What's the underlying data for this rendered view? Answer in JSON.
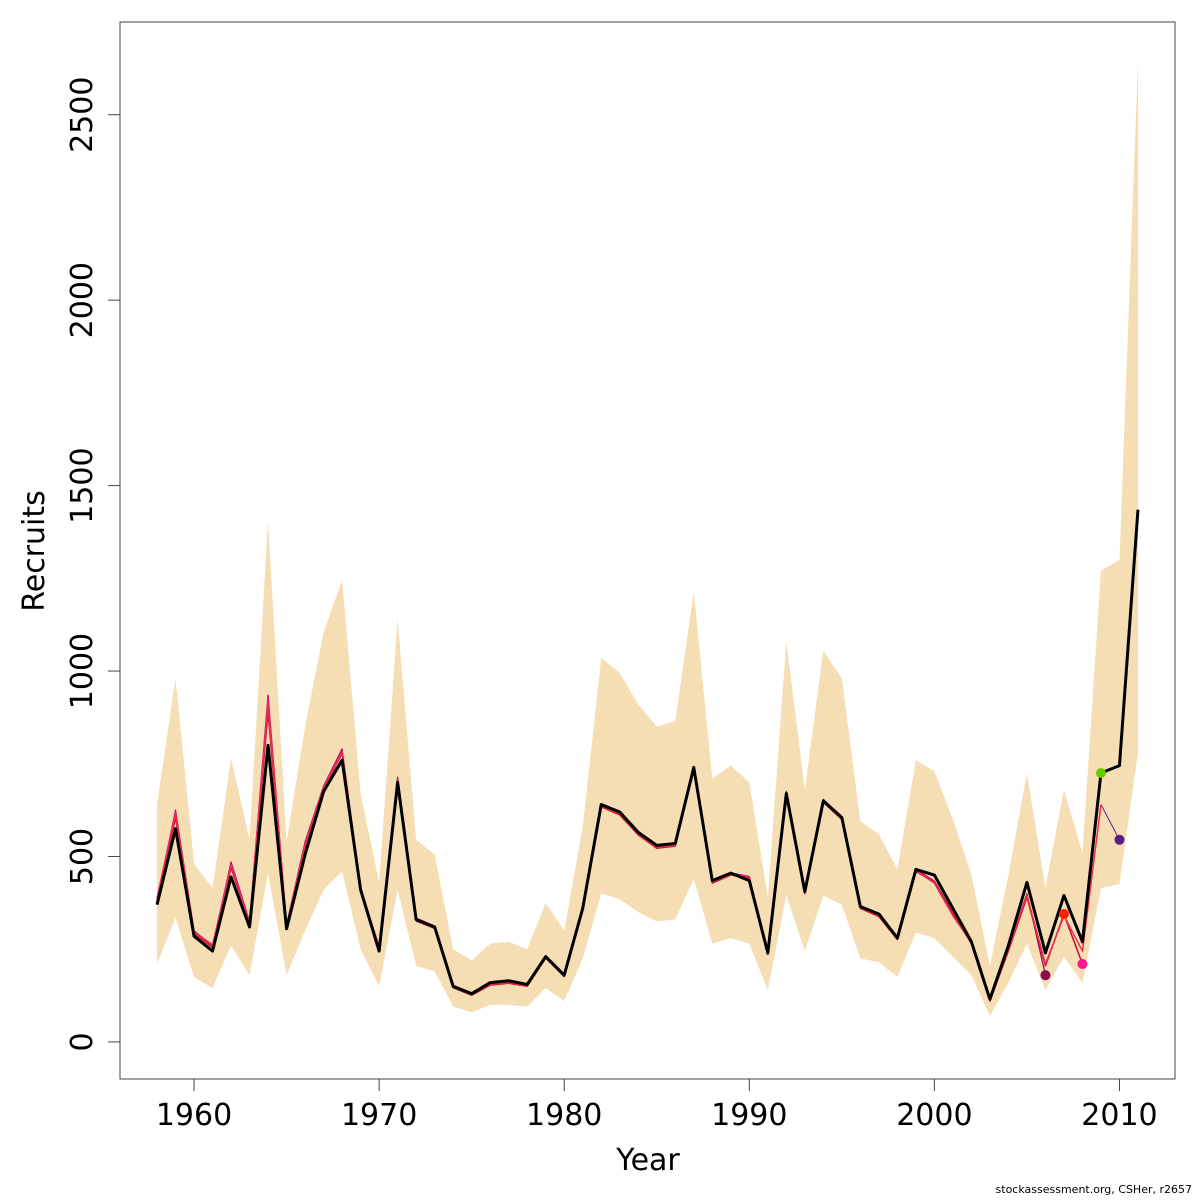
{
  "chart_data": {
    "type": "line",
    "xlabel": "Year",
    "ylabel": "Recruits",
    "xlim": [
      1956,
      2013
    ],
    "ylim": [
      -100,
      2750
    ],
    "x_ticks": [
      1960,
      1970,
      1980,
      1990,
      2000,
      2010
    ],
    "y_ticks": [
      0,
      500,
      1000,
      1500,
      2000,
      2500
    ],
    "grid": false,
    "legend": "none",
    "band": {
      "color": "#f5deb3",
      "x": [
        1958,
        1959,
        1960,
        1961,
        1962,
        1963,
        1964,
        1965,
        1966,
        1967,
        1968,
        1969,
        1970,
        1971,
        1972,
        1973,
        1974,
        1975,
        1976,
        1977,
        1978,
        1979,
        1980,
        1981,
        1982,
        1983,
        1984,
        1985,
        1986,
        1987,
        1988,
        1989,
        1990,
        1991,
        1992,
        1993,
        1994,
        1995,
        1996,
        1997,
        1998,
        1999,
        2000,
        2001,
        2002,
        2003,
        2004,
        2005,
        2006,
        2007,
        2008,
        2009,
        2010,
        2011
      ],
      "upper": [
        640,
        980,
        480,
        415,
        765,
        545,
        1405,
        540,
        850,
        1105,
        1245,
        670,
        430,
        1140,
        545,
        505,
        250,
        220,
        265,
        270,
        250,
        375,
        300,
        580,
        1035,
        995,
        910,
        850,
        865,
        1215,
        710,
        745,
        700,
        390,
        1080,
        680,
        1055,
        980,
        595,
        560,
        465,
        760,
        730,
        600,
        450,
        205,
        450,
        725,
        415,
        680,
        510,
        1270,
        1300,
        2645
      ],
      "lower": [
        210,
        335,
        175,
        145,
        260,
        180,
        455,
        180,
        300,
        410,
        460,
        250,
        150,
        410,
        205,
        190,
        95,
        80,
        100,
        100,
        95,
        145,
        110,
        225,
        400,
        385,
        350,
        325,
        330,
        440,
        265,
        280,
        265,
        140,
        395,
        245,
        395,
        370,
        225,
        215,
        175,
        295,
        280,
        230,
        180,
        70,
        160,
        265,
        140,
        230,
        160,
        415,
        425,
        780
      ]
    },
    "series": [
      {
        "color": "#000000",
        "width": 3,
        "x": [
          1958,
          1959,
          1960,
          1961,
          1962,
          1963,
          1964,
          1965,
          1966,
          1967,
          1968,
          1969,
          1970,
          1971,
          1972,
          1973,
          1974,
          1975,
          1976,
          1977,
          1978,
          1979,
          1980,
          1981,
          1982,
          1983,
          1984,
          1985,
          1986,
          1987,
          1988,
          1989,
          1990,
          1991,
          1992,
          1993,
          1994,
          1995,
          1996,
          1997,
          1998,
          1999,
          2000,
          2001,
          2002,
          2003,
          2004,
          2005,
          2006,
          2007,
          2008,
          2009,
          2010,
          2011
        ],
        "y": [
          370,
          575,
          285,
          245,
          445,
          310,
          800,
          305,
          505,
          675,
          760,
          410,
          245,
          700,
          330,
          310,
          150,
          130,
          160,
          165,
          155,
          230,
          180,
          360,
          640,
          620,
          565,
          530,
          535,
          740,
          435,
          455,
          435,
          240,
          670,
          405,
          650,
          605,
          365,
          345,
          280,
          465,
          450,
          360,
          270,
          115,
          260,
          430,
          240,
          395,
          270,
          725,
          745,
          1435
        ]
      },
      {
        "color": "#e8304a",
        "width": 1.5,
        "x": [
          1958,
          1959,
          1960,
          1961,
          1962,
          1963,
          1964,
          1965,
          1966,
          1967,
          1968,
          1969,
          1970,
          1971,
          1972,
          1973,
          1974,
          1975,
          1976,
          1977,
          1978,
          1979,
          1980,
          1981,
          1982,
          1983,
          1984,
          1985,
          1986,
          1987,
          1988,
          1989,
          1990,
          1991,
          1992,
          1993,
          1994,
          1995,
          1996,
          1997,
          1998,
          1999,
          2000,
          2001,
          2002,
          2003,
          2004,
          2005,
          2006,
          2007,
          2008,
          2009
        ],
        "y": [
          385,
          615,
          295,
          260,
          475,
          320,
          910,
          312,
          530,
          685,
          780,
          412,
          255,
          710,
          328,
          308,
          148,
          128,
          155,
          160,
          152,
          228,
          178,
          358,
          636,
          615,
          560,
          525,
          530,
          736,
          430,
          452,
          440,
          238,
          668,
          402,
          648,
          602,
          362,
          340,
          278,
          462,
          428,
          340,
          268,
          112,
          250,
          395,
          210,
          340,
          245,
          640
        ]
      },
      {
        "color": "#c8102e",
        "width": 1.5,
        "x": [
          1958,
          1959,
          1960,
          1961,
          1962,
          1963,
          1964,
          1965,
          1966,
          1967,
          1968,
          1969,
          1970,
          1971,
          1972,
          1973,
          1974,
          1975,
          1976,
          1977,
          1978,
          1979,
          1980,
          1981,
          1982,
          1983,
          1984,
          1985,
          1986,
          1987,
          1988,
          1989,
          1990,
          1991,
          1992,
          1993,
          1994,
          1995,
          1996,
          1997,
          1998,
          1999,
          2000,
          2001,
          2002,
          2003,
          2004,
          2005,
          2006,
          2007,
          2008
        ],
        "y": [
          380,
          605,
          292,
          255,
          470,
          318,
          890,
          310,
          525,
          682,
          778,
          410,
          252,
          708,
          326,
          306,
          146,
          126,
          153,
          158,
          150,
          226,
          176,
          356,
          634,
          612,
          558,
          522,
          528,
          734,
          428,
          450,
          442,
          236,
          666,
          400,
          646,
          600,
          360,
          338,
          276,
          460,
          430,
          345,
          265,
          110,
          245,
          390,
          205,
          345,
          210
        ]
      },
      {
        "color": "#ff1493",
        "width": 1.2,
        "x": [
          1958,
          1959,
          1960,
          1961,
          1962,
          1963,
          1964,
          1965,
          1966,
          1967,
          1968,
          1969,
          1970,
          1971,
          1972,
          1973,
          1974,
          1975,
          1976,
          1977,
          1978,
          1979,
          1980,
          1981,
          1982,
          1983,
          1984,
          1985,
          1986,
          1987,
          1988,
          1989,
          1990,
          1991,
          1992,
          1993,
          1994,
          1995,
          1996,
          1997,
          1998,
          1999,
          2000,
          2001,
          2002,
          2003,
          2004,
          2005,
          2006,
          2007,
          2008
        ],
        "y": [
          390,
          620,
          298,
          262,
          480,
          322,
          925,
          314,
          535,
          688,
          785,
          414,
          258,
          712,
          332,
          310,
          150,
          130,
          157,
          162,
          154,
          230,
          180,
          360,
          638,
          618,
          562,
          528,
          532,
          738,
          432,
          454,
          445,
          240,
          672,
          404,
          652,
          604,
          364,
          342,
          280,
          464,
          432,
          348,
          270,
          113,
          248,
          392,
          208,
          342,
          210
        ]
      },
      {
        "color": "#8b0a50",
        "width": 1.2,
        "x": [
          1958,
          1959,
          1960,
          1961,
          1962,
          1963,
          1964,
          1965,
          1966,
          1967,
          1968,
          1969,
          1970,
          1971,
          1972,
          1973,
          1974,
          1975,
          1976,
          1977,
          1978,
          1979,
          1980,
          1981,
          1982,
          1983,
          1984,
          1985,
          1986,
          1987,
          1988,
          1989,
          1990,
          1991,
          1992,
          1993,
          1994,
          1995,
          1996,
          1997,
          1998,
          1999,
          2000,
          2001,
          2002,
          2003,
          2004,
          2005,
          2006
        ],
        "y": [
          382,
          625,
          300,
          258,
          485,
          325,
          935,
          316,
          540,
          690,
          790,
          416,
          256,
          714,
          334,
          312,
          152,
          132,
          158,
          163,
          155,
          232,
          182,
          362,
          640,
          620,
          564,
          530,
          534,
          740,
          434,
          456,
          446,
          242,
          676,
          406,
          654,
          606,
          366,
          344,
          282,
          466,
          434,
          350,
          272,
          114,
          252,
          400,
          180
        ]
      },
      {
        "color": "#5a1a8a",
        "width": 1,
        "x": [
          2009,
          2010
        ],
        "y": [
          640,
          545
        ]
      },
      {
        "color": "#3cb000",
        "width": 1.2,
        "x": [
          2008,
          2009
        ],
        "y": [
          265,
          725
        ]
      }
    ],
    "points": [
      {
        "x": 2006,
        "y": 180,
        "color": "#8b0a50"
      },
      {
        "x": 2007,
        "y": 345,
        "color": "#ff2000"
      },
      {
        "x": 2008,
        "y": 210,
        "color": "#ff1493"
      },
      {
        "x": 2009,
        "y": 725,
        "color": "#66cc00"
      },
      {
        "x": 2010,
        "y": 545,
        "color": "#5a1a8a"
      }
    ]
  },
  "footer": {
    "credit": "stockassessment.org, CSHer, r2657"
  }
}
